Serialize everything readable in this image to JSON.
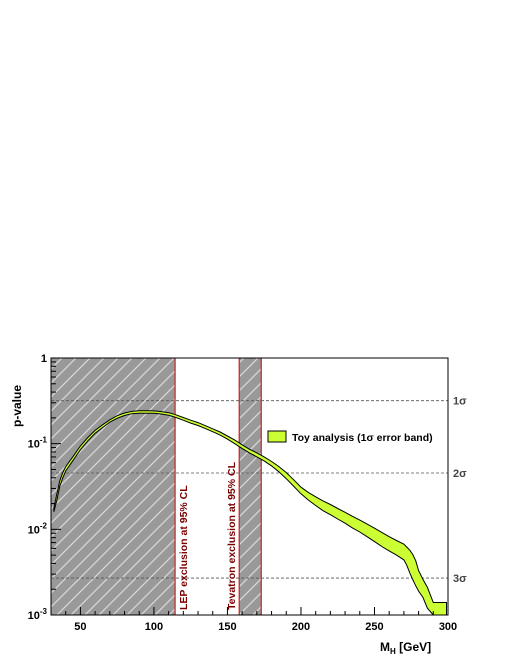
{
  "chart_data": {
    "type": "line",
    "xlabel": "M",
    "xlabel_sub": "H",
    "xlabel_unit": " [GeV]",
    "ylabel": "p-value",
    "xlim": [
      30,
      300
    ],
    "ylim": [
      0.001,
      1
    ],
    "y_scale": "log",
    "x_ticks": [
      50,
      100,
      150,
      200,
      250,
      300
    ],
    "y_ticks": [
      {
        "value": 1,
        "base": "1",
        "exp": ""
      },
      {
        "value": 0.1,
        "base": "10",
        "exp": "-1"
      },
      {
        "value": 0.01,
        "base": "10",
        "exp": "-2"
      },
      {
        "value": 0.001,
        "base": "10",
        "exp": "-3"
      }
    ],
    "sigma_lines": [
      {
        "label": "1σ",
        "p": 0.3173
      },
      {
        "label": "2σ",
        "p": 0.0455
      },
      {
        "label": "3σ",
        "p": 0.0027
      }
    ],
    "exclusions": [
      {
        "label": "LEP exclusion at 95% CL",
        "x": [
          30,
          114.4
        ]
      },
      {
        "label": "Tevatron exclusion at 95% CL",
        "x": [
          158,
          173
        ]
      }
    ],
    "legend": {
      "entry": "Toy analysis (1σ error band)",
      "placement": "right"
    },
    "series": [
      {
        "name": "Toy analysis (1σ error band)",
        "x": [
          32,
          34,
          36,
          38,
          40,
          45,
          50,
          55,
          60,
          65,
          70,
          75,
          80,
          85,
          90,
          95,
          100,
          105,
          110,
          114,
          120,
          125,
          130,
          135,
          140,
          145,
          150,
          155,
          160,
          165,
          170,
          175,
          180,
          185,
          190,
          195,
          200,
          205,
          210,
          215,
          220,
          225,
          230,
          235,
          240,
          245,
          250,
          255,
          260,
          265,
          270,
          272,
          274,
          276,
          278,
          280,
          283,
          286,
          290,
          295,
          299
        ],
        "lower": [
          0.016,
          0.022,
          0.032,
          0.04,
          0.048,
          0.064,
          0.085,
          0.108,
          0.132,
          0.154,
          0.178,
          0.198,
          0.213,
          0.224,
          0.227,
          0.227,
          0.226,
          0.222,
          0.215,
          0.205,
          0.188,
          0.174,
          0.163,
          0.15,
          0.138,
          0.126,
          0.113,
          0.1,
          0.088,
          0.078,
          0.07,
          0.063,
          0.055,
          0.047,
          0.039,
          0.032,
          0.026,
          0.022,
          0.019,
          0.0165,
          0.0148,
          0.0132,
          0.0118,
          0.0104,
          0.0093,
          0.0082,
          0.0072,
          0.0063,
          0.0056,
          0.005,
          0.0044,
          0.0038,
          0.0031,
          0.0026,
          0.0022,
          0.0019,
          0.0016,
          0.0012,
          0.001,
          0.001,
          0.001
        ],
        "upper": [
          0.018,
          0.026,
          0.037,
          0.046,
          0.054,
          0.071,
          0.094,
          0.118,
          0.143,
          0.166,
          0.19,
          0.212,
          0.228,
          0.238,
          0.242,
          0.242,
          0.241,
          0.237,
          0.23,
          0.22,
          0.202,
          0.188,
          0.176,
          0.162,
          0.149,
          0.137,
          0.123,
          0.11,
          0.097,
          0.086,
          0.078,
          0.07,
          0.062,
          0.054,
          0.046,
          0.038,
          0.031,
          0.027,
          0.024,
          0.0215,
          0.0195,
          0.0175,
          0.0158,
          0.0142,
          0.0128,
          0.0115,
          0.0103,
          0.0092,
          0.0082,
          0.0074,
          0.0067,
          0.0062,
          0.0057,
          0.0051,
          0.0043,
          0.0033,
          0.0026,
          0.0021,
          0.0014,
          0.0014,
          0.0014
        ],
        "fill_color": "#ccff33",
        "line_color": "#000000"
      }
    ],
    "colors": {
      "exclusion_fill": "#999999",
      "exclusion_edge": "#cc2222",
      "hatch": "#d9d9d9",
      "sigma_line": "#555555"
    }
  }
}
